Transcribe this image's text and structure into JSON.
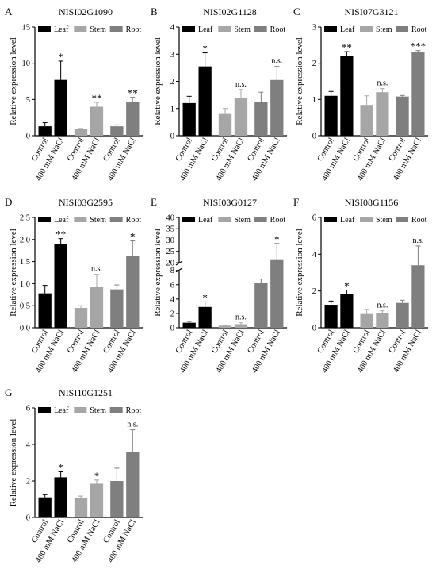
{
  "legend": [
    "Leaf",
    "Stem",
    "Root"
  ],
  "colors": {
    "Leaf": "#000000",
    "Stem": "#a6a6a6",
    "Root": "#7f7f7f",
    "axis": "#000000"
  },
  "xtick_labels": [
    "Control",
    "400 mM NaCl"
  ],
  "ylabel": "Relative expression level",
  "chart_data": [
    {
      "type": "bar",
      "panel": "A",
      "title": "NISI02G1090",
      "ylim": [
        0,
        15
      ],
      "yticks": [
        0,
        5,
        10,
        15
      ],
      "ytick_labels": [
        "0",
        "5",
        "10",
        "15"
      ],
      "groups": [
        "Leaf",
        "Stem",
        "Root"
      ],
      "series": [
        {
          "name": "Leaf",
          "values": [
            1.3,
            7.7
          ],
          "errors": [
            0.5,
            2.6
          ],
          "significance": "*"
        },
        {
          "name": "Stem",
          "values": [
            0.9,
            4.0
          ],
          "errors": [
            0.1,
            0.6
          ],
          "significance": "**"
        },
        {
          "name": "Root",
          "values": [
            1.3,
            4.6
          ],
          "errors": [
            0.2,
            0.7
          ],
          "significance": "**"
        }
      ]
    },
    {
      "type": "bar",
      "panel": "B",
      "title": "NISI02G1128",
      "ylim": [
        0,
        4
      ],
      "yticks": [
        0,
        1,
        2,
        3,
        4
      ],
      "ytick_labels": [
        "0",
        "1",
        "2",
        "3",
        "4"
      ],
      "groups": [
        "Leaf",
        "Stem",
        "Root"
      ],
      "series": [
        {
          "name": "Leaf",
          "values": [
            1.2,
            2.55
          ],
          "errors": [
            0.25,
            0.5
          ],
          "significance": "*"
        },
        {
          "name": "Stem",
          "values": [
            0.8,
            1.4
          ],
          "errors": [
            0.2,
            0.3
          ],
          "significance": "n.s."
        },
        {
          "name": "Root",
          "values": [
            1.25,
            2.05
          ],
          "errors": [
            0.35,
            0.5
          ],
          "significance": "n.s."
        }
      ]
    },
    {
      "type": "bar",
      "panel": "C",
      "title": "NISI07G3121",
      "ylim": [
        0,
        3
      ],
      "yticks": [
        0,
        1,
        2,
        3
      ],
      "ytick_labels": [
        "0",
        "1",
        "2",
        "3"
      ],
      "groups": [
        "Leaf",
        "Stem",
        "Root"
      ],
      "series": [
        {
          "name": "Leaf",
          "values": [
            1.1,
            2.2
          ],
          "errors": [
            0.12,
            0.12
          ],
          "significance": "**"
        },
        {
          "name": "Stem",
          "values": [
            0.85,
            1.2
          ],
          "errors": [
            0.25,
            0.1
          ],
          "significance": "n.s."
        },
        {
          "name": "Root",
          "values": [
            1.08,
            2.32
          ],
          "errors": [
            0.03,
            0.03
          ],
          "significance": "***"
        }
      ]
    },
    {
      "type": "bar",
      "panel": "D",
      "title": "NISI03G2595",
      "ylim": [
        0,
        2.5
      ],
      "yticks": [
        0,
        0.5,
        1.0,
        1.5,
        2.0,
        2.5
      ],
      "ytick_labels": [
        "0.0",
        "0.5",
        "1.0",
        "1.5",
        "2.0",
        "2.5"
      ],
      "groups": [
        "Leaf",
        "Stem",
        "Root"
      ],
      "series": [
        {
          "name": "Leaf",
          "values": [
            0.78,
            1.9
          ],
          "errors": [
            0.18,
            0.12
          ],
          "significance": "**"
        },
        {
          "name": "Stem",
          "values": [
            0.45,
            0.93
          ],
          "errors": [
            0.05,
            0.28
          ],
          "significance": "n.s."
        },
        {
          "name": "Root",
          "values": [
            0.87,
            1.62
          ],
          "errors": [
            0.1,
            0.35
          ],
          "significance": "*"
        }
      ]
    },
    {
      "type": "bar",
      "panel": "E",
      "title": "NISI03G0127",
      "axis_break": {
        "lower_max": 8,
        "upper_min": 20
      },
      "ylim": [
        0,
        40
      ],
      "yticks": [
        0,
        2,
        4,
        6,
        8,
        20,
        25,
        30,
        35,
        40
      ],
      "ytick_labels": [
        "0",
        "2",
        "4",
        "6",
        "8",
        "20",
        "25",
        "30",
        "35",
        "40"
      ],
      "groups": [
        "Leaf",
        "Stem",
        "Root"
      ],
      "series": [
        {
          "name": "Leaf",
          "values": [
            0.7,
            2.9
          ],
          "errors": [
            0.2,
            0.7
          ],
          "significance": "*"
        },
        {
          "name": "Stem",
          "values": [
            0.3,
            0.5
          ],
          "errors": [
            0.05,
            0.2
          ],
          "significance": "n.s."
        },
        {
          "name": "Root",
          "values": [
            6.3,
            21.5
          ],
          "errors": [
            0.5,
            7.0
          ],
          "significance": "*"
        }
      ]
    },
    {
      "type": "bar",
      "panel": "F",
      "title": "NISI08G1156",
      "ylim": [
        0,
        6
      ],
      "yticks": [
        0,
        2,
        4,
        6
      ],
      "ytick_labels": [
        "0",
        "2",
        "4",
        "6"
      ],
      "groups": [
        "Leaf",
        "Stem",
        "Root"
      ],
      "series": [
        {
          "name": "Leaf",
          "values": [
            1.25,
            1.85
          ],
          "errors": [
            0.2,
            0.2
          ],
          "significance": "*"
        },
        {
          "name": "Stem",
          "values": [
            0.75,
            0.8
          ],
          "errors": [
            0.25,
            0.12
          ],
          "significance": "n.s."
        },
        {
          "name": "Root",
          "values": [
            1.35,
            3.4
          ],
          "errors": [
            0.15,
            1.05
          ],
          "significance": "n.s."
        }
      ]
    },
    {
      "type": "bar",
      "panel": "G",
      "title": "NISI10G1251",
      "ylim": [
        0,
        6
      ],
      "yticks": [
        0,
        2,
        4,
        6
      ],
      "ytick_labels": [
        "0",
        "2",
        "4",
        "6"
      ],
      "groups": [
        "Leaf",
        "Stem",
        "Root"
      ],
      "series": [
        {
          "name": "Leaf",
          "values": [
            1.1,
            2.2
          ],
          "errors": [
            0.15,
            0.3
          ],
          "significance": "*"
        },
        {
          "name": "Stem",
          "values": [
            1.05,
            1.85
          ],
          "errors": [
            0.12,
            0.2
          ],
          "significance": "*"
        },
        {
          "name": "Root",
          "values": [
            2.0,
            3.6
          ],
          "errors": [
            0.7,
            1.2
          ],
          "significance": "n.s."
        }
      ]
    }
  ]
}
